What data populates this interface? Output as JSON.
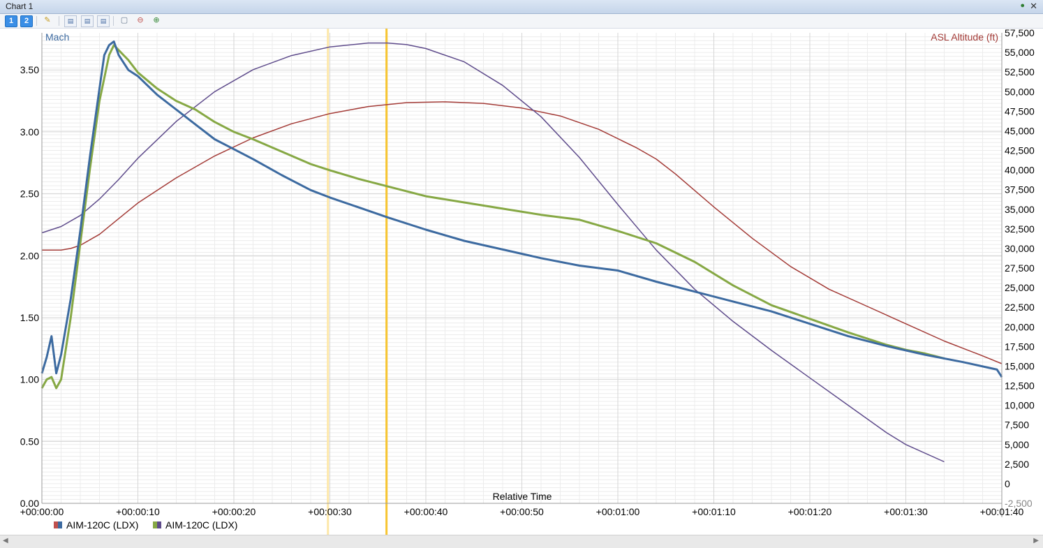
{
  "window": {
    "title": "Chart 1",
    "pin_icon": "pin-icon",
    "close_icon": "close-icon",
    "close_glyph": "✕",
    "pin_glyph": "●"
  },
  "toolbar": {
    "buttons": [
      {
        "name": "layout-1-button",
        "label": "1"
      },
      {
        "name": "layout-2-button",
        "label": "2"
      },
      {
        "name": "wand-icon",
        "icon": "wand-icon"
      },
      {
        "name": "chart-options-1-icon",
        "icon": "chart-options-icon"
      },
      {
        "name": "chart-options-2-icon",
        "icon": "chart-options-icon"
      },
      {
        "name": "chart-options-3-icon",
        "icon": "chart-options-icon"
      },
      {
        "name": "zoom-fit-icon",
        "icon": "zoom-fit-icon"
      },
      {
        "name": "zoom-out-icon",
        "icon": "zoom-out-icon"
      },
      {
        "name": "zoom-in-icon",
        "icon": "zoom-in-icon"
      }
    ]
  },
  "chart_data": {
    "type": "line",
    "xlabel": "Relative Time",
    "ylabel_left": "Mach",
    "ylabel_right": "ASL Altitude (ft)",
    "xlim": [
      0,
      100
    ],
    "ylim_left": [
      0,
      3.8
    ],
    "ylim_right": [
      -2500,
      57500
    ],
    "x_ticks": [
      {
        "v": 0,
        "label": "+00:00:00"
      },
      {
        "v": 10,
        "label": "+00:00:10"
      },
      {
        "v": 20,
        "label": "+00:00:20"
      },
      {
        "v": 30,
        "label": "+00:00:30"
      },
      {
        "v": 40,
        "label": "+00:00:40"
      },
      {
        "v": 50,
        "label": "+00:00:50"
      },
      {
        "v": 60,
        "label": "+00:01:00"
      },
      {
        "v": 70,
        "label": "+00:01:10"
      },
      {
        "v": 80,
        "label": "+00:01:20"
      },
      {
        "v": 90,
        "label": "+00:01:30"
      },
      {
        "v": 100,
        "label": "+00:01:40"
      }
    ],
    "y_left_ticks": [
      {
        "v": 0,
        "label": "0.00"
      },
      {
        "v": 0.5,
        "label": "0.50"
      },
      {
        "v": 1,
        "label": "1.00"
      },
      {
        "v": 1.5,
        "label": "1.50"
      },
      {
        "v": 2,
        "label": "2.00"
      },
      {
        "v": 2.5,
        "label": "2.50"
      },
      {
        "v": 3,
        "label": "3.00"
      },
      {
        "v": 3.5,
        "label": "3.50"
      }
    ],
    "y_right_ticks": [
      {
        "v": -2500,
        "label": "-2,500"
      },
      {
        "v": 0,
        "label": "0"
      },
      {
        "v": 2500,
        "label": "2,500"
      },
      {
        "v": 5000,
        "label": "5,000"
      },
      {
        "v": 7500,
        "label": "7,500"
      },
      {
        "v": 10000,
        "label": "10,000"
      },
      {
        "v": 12500,
        "label": "12,500"
      },
      {
        "v": 15000,
        "label": "15,000"
      },
      {
        "v": 17500,
        "label": "17,500"
      },
      {
        "v": 20000,
        "label": "20,000"
      },
      {
        "v": 22500,
        "label": "22,500"
      },
      {
        "v": 25000,
        "label": "25,000"
      },
      {
        "v": 27500,
        "label": "27,500"
      },
      {
        "v": 30000,
        "label": "30,000"
      },
      {
        "v": 32500,
        "label": "32,500"
      },
      {
        "v": 35000,
        "label": "35,000"
      },
      {
        "v": 37500,
        "label": "37,500"
      },
      {
        "v": 40000,
        "label": "40,000"
      },
      {
        "v": 42500,
        "label": "42,500"
      },
      {
        "v": 45000,
        "label": "45,000"
      },
      {
        "v": 47500,
        "label": "47,500"
      },
      {
        "v": 50000,
        "label": "50,000"
      },
      {
        "v": 52500,
        "label": "52,500"
      },
      {
        "v": 55000,
        "label": "55,000"
      },
      {
        "v": 57500,
        "label": "57,500"
      }
    ],
    "markers": [
      {
        "x": 29.8,
        "color": "#fde7a8"
      },
      {
        "x": 35.9,
        "color": "#f7c531"
      }
    ],
    "series": [
      {
        "name": "AIM-120C (LDX)",
        "axis": "left",
        "color": "#3c6aa0",
        "width": 3,
        "legend_swatch": [
          "#c0504d",
          "#3c6aa0"
        ],
        "x": [
          0,
          0.5,
          1,
          1.5,
          2,
          3,
          4,
          5,
          6,
          6.5,
          7,
          7.5,
          8,
          9,
          10,
          12,
          14,
          16,
          18,
          20,
          22,
          25,
          28,
          30,
          33,
          36,
          40,
          44,
          48,
          52,
          56,
          60,
          64,
          68,
          72,
          76,
          80,
          84,
          88,
          92,
          96,
          99.5,
          100
        ],
        "y": [
          1.05,
          1.18,
          1.35,
          1.05,
          1.2,
          1.65,
          2.2,
          2.8,
          3.35,
          3.62,
          3.7,
          3.73,
          3.62,
          3.5,
          3.45,
          3.3,
          3.18,
          3.06,
          2.94,
          2.86,
          2.78,
          2.65,
          2.53,
          2.47,
          2.39,
          2.31,
          2.21,
          2.12,
          2.05,
          1.98,
          1.92,
          1.88,
          1.79,
          1.71,
          1.63,
          1.55,
          1.45,
          1.35,
          1.27,
          1.2,
          1.14,
          1.08,
          1.02
        ]
      },
      {
        "name": "AIM-120C (LDX)",
        "axis": "left",
        "color": "#86a844",
        "width": 3,
        "legend_swatch": [
          "#86a844",
          "#5e4b8b"
        ],
        "x": [
          0,
          0.5,
          1,
          1.5,
          2,
          3,
          4,
          5,
          6,
          7,
          7.5,
          8,
          9,
          10,
          12,
          14,
          16,
          18,
          20,
          22,
          25,
          28,
          30,
          33,
          36,
          40,
          44,
          48,
          52,
          56,
          60,
          64,
          68,
          72,
          76,
          80,
          84,
          88,
          90,
          92,
          94
        ],
        "y": [
          0.93,
          1.0,
          1.02,
          0.93,
          1.0,
          1.5,
          2.1,
          2.7,
          3.25,
          3.62,
          3.7,
          3.66,
          3.58,
          3.48,
          3.35,
          3.25,
          3.18,
          3.08,
          3.0,
          2.94,
          2.84,
          2.74,
          2.69,
          2.62,
          2.56,
          2.48,
          2.43,
          2.38,
          2.33,
          2.29,
          2.2,
          2.1,
          1.95,
          1.76,
          1.6,
          1.49,
          1.38,
          1.28,
          1.24,
          1.21,
          1.17
        ]
      },
      {
        "name": "",
        "axis": "right",
        "color": "#5e4b8b",
        "width": 1.5,
        "x": [
          0,
          2,
          4,
          6,
          8,
          10,
          14,
          18,
          22,
          26,
          30,
          34,
          36,
          38,
          40,
          44,
          48,
          52,
          56,
          60,
          64,
          68,
          72,
          76,
          80,
          84,
          88,
          90,
          94
        ],
        "y": [
          32000,
          32800,
          34200,
          36300,
          38800,
          41500,
          46200,
          50000,
          52800,
          54600,
          55700,
          56200,
          56200,
          56000,
          55500,
          53800,
          50800,
          46800,
          41600,
          35600,
          29800,
          24800,
          20700,
          17000,
          13500,
          10000,
          6500,
          5000,
          2800
        ]
      },
      {
        "name": "",
        "axis": "right",
        "color": "#a33a36",
        "width": 1.5,
        "x": [
          0,
          2,
          3,
          4,
          6,
          8,
          10,
          14,
          18,
          22,
          26,
          30,
          34,
          38,
          42,
          46,
          50,
          54,
          58,
          62,
          64,
          66,
          68,
          70,
          74,
          78,
          82,
          86,
          90,
          94,
          98,
          100
        ],
        "y": [
          29800,
          29800,
          30000,
          30400,
          31800,
          33800,
          35800,
          39000,
          41800,
          44100,
          45900,
          47200,
          48100,
          48600,
          48700,
          48500,
          47900,
          46900,
          45200,
          42800,
          41400,
          39500,
          37400,
          35300,
          31300,
          27700,
          24800,
          22600,
          20400,
          18200,
          16300,
          15300
        ]
      }
    ]
  },
  "legend": {
    "items": [
      {
        "label": "AIM-120C (LDX)"
      },
      {
        "label": "AIM-120C (LDX)"
      }
    ]
  },
  "scrollbar": {
    "left_arrow": "◀",
    "right_arrow": "▶"
  }
}
